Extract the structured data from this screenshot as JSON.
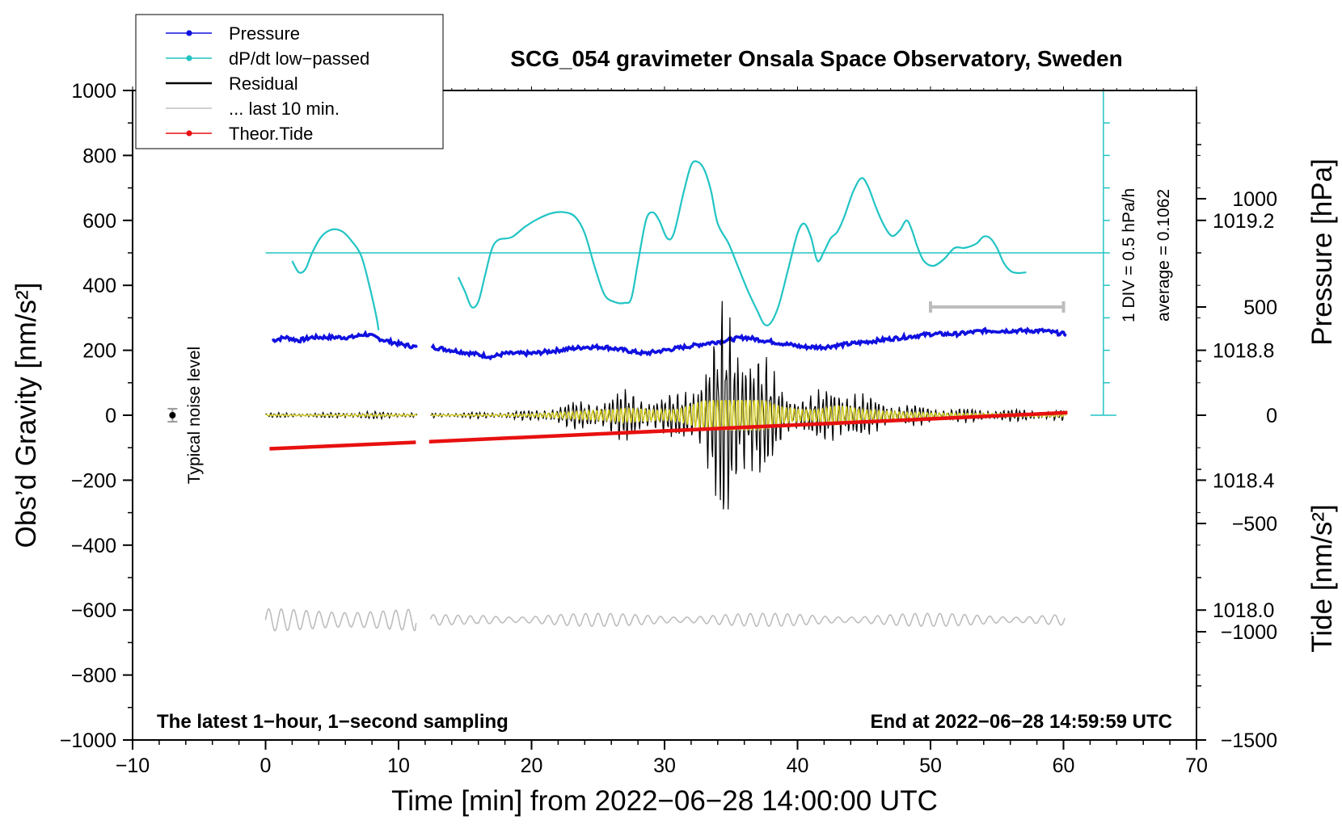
{
  "chart_data": {
    "type": "line",
    "title": "SCG_054 gravimeter Onsala Space Observatory, Sweden",
    "xlabel": "Time [min] from 2022−06−28 14:00:00 UTC",
    "ylabel_left": "Obs’d Gravity [nm/s²]",
    "ylabel_right_pressure": "Pressure [hPa]",
    "ylabel_right_tide": "Tide [nm/s²]",
    "xlim": [
      -10,
      70
    ],
    "ylim": [
      -1000,
      1000
    ],
    "pressure_ylim": [
      1017.6,
      1019.6
    ],
    "tide_ylim": [
      -1500,
      1500
    ],
    "x_ticks": [
      "−10",
      "0",
      "10",
      "20",
      "30",
      "40",
      "50",
      "60",
      "70"
    ],
    "x_tick_values": [
      -10,
      0,
      10,
      20,
      30,
      40,
      50,
      60,
      70
    ],
    "y_ticks": [
      "1000",
      "800",
      "600",
      "400",
      "200",
      "0",
      "−200",
      "−400",
      "−600",
      "−800",
      "−1000"
    ],
    "y_tick_values": [
      1000,
      800,
      600,
      400,
      200,
      0,
      -200,
      -400,
      -600,
      -800,
      -1000
    ],
    "pressure_ticks": [
      "1019.2",
      "1018.8",
      "1018.4",
      "1018.0"
    ],
    "pressure_tick_values": [
      1019.2,
      1018.8,
      1018.4,
      1018.0
    ],
    "tide_ticks": [
      "1000",
      "500",
      "0",
      "−500",
      "−1000",
      "−1500"
    ],
    "tide_tick_values": [
      1000,
      500,
      0,
      -500,
      -1000,
      -1500
    ],
    "legend": [
      {
        "label": "Pressure",
        "color": "#1010e0",
        "marker": true
      },
      {
        "label": "dP/dt low−passed",
        "color": "#22c4c4",
        "marker": true
      },
      {
        "label": "Residual",
        "color": "#000000",
        "marker": false
      },
      {
        "label": "... last 10 min.",
        "color": "#c0c0c0",
        "marker": false
      },
      {
        "label": "Theor.Tide",
        "color": "#e81010",
        "marker": true
      }
    ],
    "gap": [
      11.4,
      12.4
    ],
    "pressure_hpa": [
      [
        0.5,
        1018.83
      ],
      [
        1.5,
        1018.84
      ],
      [
        2.5,
        1018.83
      ],
      [
        3.5,
        1018.84
      ],
      [
        5,
        1018.84
      ],
      [
        6.5,
        1018.84
      ],
      [
        7.5,
        1018.85
      ],
      [
        9,
        1018.83
      ],
      [
        10,
        1018.82
      ],
      [
        11.3,
        1018.81
      ],
      [
        12.5,
        1018.81
      ],
      [
        14,
        1018.8
      ],
      [
        15.5,
        1018.79
      ],
      [
        17,
        1018.78
      ],
      [
        18,
        1018.79
      ],
      [
        20,
        1018.79
      ],
      [
        22,
        1018.8
      ],
      [
        24,
        1018.81
      ],
      [
        25.5,
        1018.81
      ],
      [
        27,
        1018.8
      ],
      [
        28.5,
        1018.79
      ],
      [
        30,
        1018.8
      ],
      [
        31.5,
        1018.81
      ],
      [
        33,
        1018.82
      ],
      [
        34.5,
        1018.83
      ],
      [
        36,
        1018.84
      ],
      [
        37.5,
        1018.83
      ],
      [
        39,
        1018.82
      ],
      [
        40.5,
        1018.81
      ],
      [
        42,
        1018.81
      ],
      [
        44,
        1018.82
      ],
      [
        46,
        1018.83
      ],
      [
        48,
        1018.84
      ],
      [
        50,
        1018.85
      ],
      [
        52,
        1018.85
      ],
      [
        54,
        1018.86
      ],
      [
        56,
        1018.86
      ],
      [
        57.5,
        1018.86
      ],
      [
        58.5,
        1018.86
      ],
      [
        60,
        1018.85
      ]
    ],
    "dpdt_segments": [
      [
        [
          2,
          475
        ],
        [
          2.5,
          440
        ],
        [
          3,
          450
        ],
        [
          3.5,
          500
        ],
        [
          4.2,
          550
        ],
        [
          5,
          572
        ],
        [
          5.8,
          565
        ],
        [
          6.5,
          535
        ],
        [
          7.2,
          490
        ],
        [
          7.8,
          400
        ],
        [
          8.3,
          310
        ],
        [
          8.5,
          262
        ]
      ],
      [
        [
          14.5,
          425
        ],
        [
          15,
          380
        ],
        [
          15.5,
          333
        ],
        [
          16,
          350
        ],
        [
          16.5,
          430
        ],
        [
          17,
          510
        ],
        [
          17.5,
          540
        ],
        [
          18.5,
          548
        ],
        [
          19.5,
          580
        ],
        [
          20.5,
          605
        ],
        [
          21.5,
          622
        ],
        [
          22.5,
          625
        ],
        [
          23.3,
          610
        ],
        [
          24,
          560
        ],
        [
          24.8,
          450
        ],
        [
          25.5,
          370
        ],
        [
          26.3,
          348
        ],
        [
          27,
          346
        ],
        [
          27.5,
          360
        ],
        [
          28,
          470
        ],
        [
          28.6,
          600
        ],
        [
          29.1,
          625
        ],
        [
          29.6,
          600
        ],
        [
          30.2,
          545
        ],
        [
          30.7,
          560
        ],
        [
          31.4,
          680
        ],
        [
          32,
          770
        ],
        [
          32.5,
          780
        ],
        [
          33,
          755
        ],
        [
          33.5,
          690
        ],
        [
          34,
          590
        ],
        [
          34.8,
          530
        ],
        [
          35.5,
          460
        ],
        [
          36.3,
          380
        ],
        [
          37,
          320
        ],
        [
          37.5,
          280
        ],
        [
          38,
          285
        ],
        [
          38.6,
          340
        ],
        [
          39.3,
          450
        ],
        [
          40,
          560
        ],
        [
          40.5,
          590
        ],
        [
          41,
          550
        ],
        [
          41.5,
          475
        ],
        [
          42,
          505
        ],
        [
          42.5,
          545
        ],
        [
          43,
          565
        ],
        [
          43.5,
          610
        ],
        [
          44.2,
          690
        ],
        [
          44.8,
          730
        ],
        [
          45.3,
          705
        ],
        [
          45.9,
          640
        ],
        [
          46.5,
          585
        ],
        [
          47.1,
          552
        ],
        [
          47.7,
          570
        ],
        [
          48.2,
          600
        ],
        [
          48.6,
          570
        ],
        [
          49,
          520
        ],
        [
          49.5,
          475
        ],
        [
          50.2,
          460
        ],
        [
          51,
          480
        ],
        [
          51.8,
          515
        ],
        [
          52.5,
          515
        ],
        [
          53,
          520
        ],
        [
          53.5,
          530
        ],
        [
          54,
          550
        ],
        [
          54.5,
          545
        ],
        [
          55,
          515
        ],
        [
          55.5,
          470
        ],
        [
          56,
          445
        ],
        [
          56.5,
          438
        ],
        [
          57.2,
          440
        ]
      ]
    ],
    "dpdt_baseline": 500,
    "dpdt_scale": {
      "label_div": "1 DIV = 0.5 hPa/h",
      "label_avg": "average = 0.1062"
    },
    "residual_envelope": [
      [
        0,
        8
      ],
      [
        5,
        9
      ],
      [
        7,
        14
      ],
      [
        9,
        12
      ],
      [
        11.3,
        10
      ],
      [
        12.5,
        9
      ],
      [
        15,
        10
      ],
      [
        18,
        13
      ],
      [
        20,
        18
      ],
      [
        22,
        35
      ],
      [
        24,
        55
      ],
      [
        26,
        70
      ],
      [
        27,
        90
      ],
      [
        28,
        85
      ],
      [
        29,
        70
      ],
      [
        30,
        65
      ],
      [
        31,
        80
      ],
      [
        32,
        130
      ],
      [
        33,
        200
      ],
      [
        34,
        300
      ],
      [
        34.5,
        420
      ],
      [
        35,
        360
      ],
      [
        35.5,
        330
      ],
      [
        36,
        350
      ],
      [
        36.5,
        300
      ],
      [
        37,
        250
      ],
      [
        38,
        160
      ],
      [
        39,
        100
      ],
      [
        40,
        80
      ],
      [
        41,
        70
      ],
      [
        42,
        90
      ],
      [
        43,
        130
      ],
      [
        44,
        100
      ],
      [
        45,
        70
      ],
      [
        46,
        60
      ],
      [
        48,
        40
      ],
      [
        50,
        30
      ],
      [
        52,
        25
      ],
      [
        55,
        22
      ],
      [
        58,
        20
      ],
      [
        60,
        18
      ]
    ],
    "tide": [
      [
        0.3,
        -155
      ],
      [
        11.3,
        -125
      ],
      [
        12.3,
        -122
      ],
      [
        60.3,
        12
      ]
    ],
    "last10_bar": [
      50,
      60
    ],
    "last10_bar_tide_level": 500,
    "noise_level": {
      "x": -7,
      "y": 0,
      "err": 20,
      "label": "Typical noise level"
    },
    "annotation_left": "The latest 1−hour, 1−second sampling",
    "annotation_right": "End at 2022−06−28 14:59:59 UTC"
  }
}
